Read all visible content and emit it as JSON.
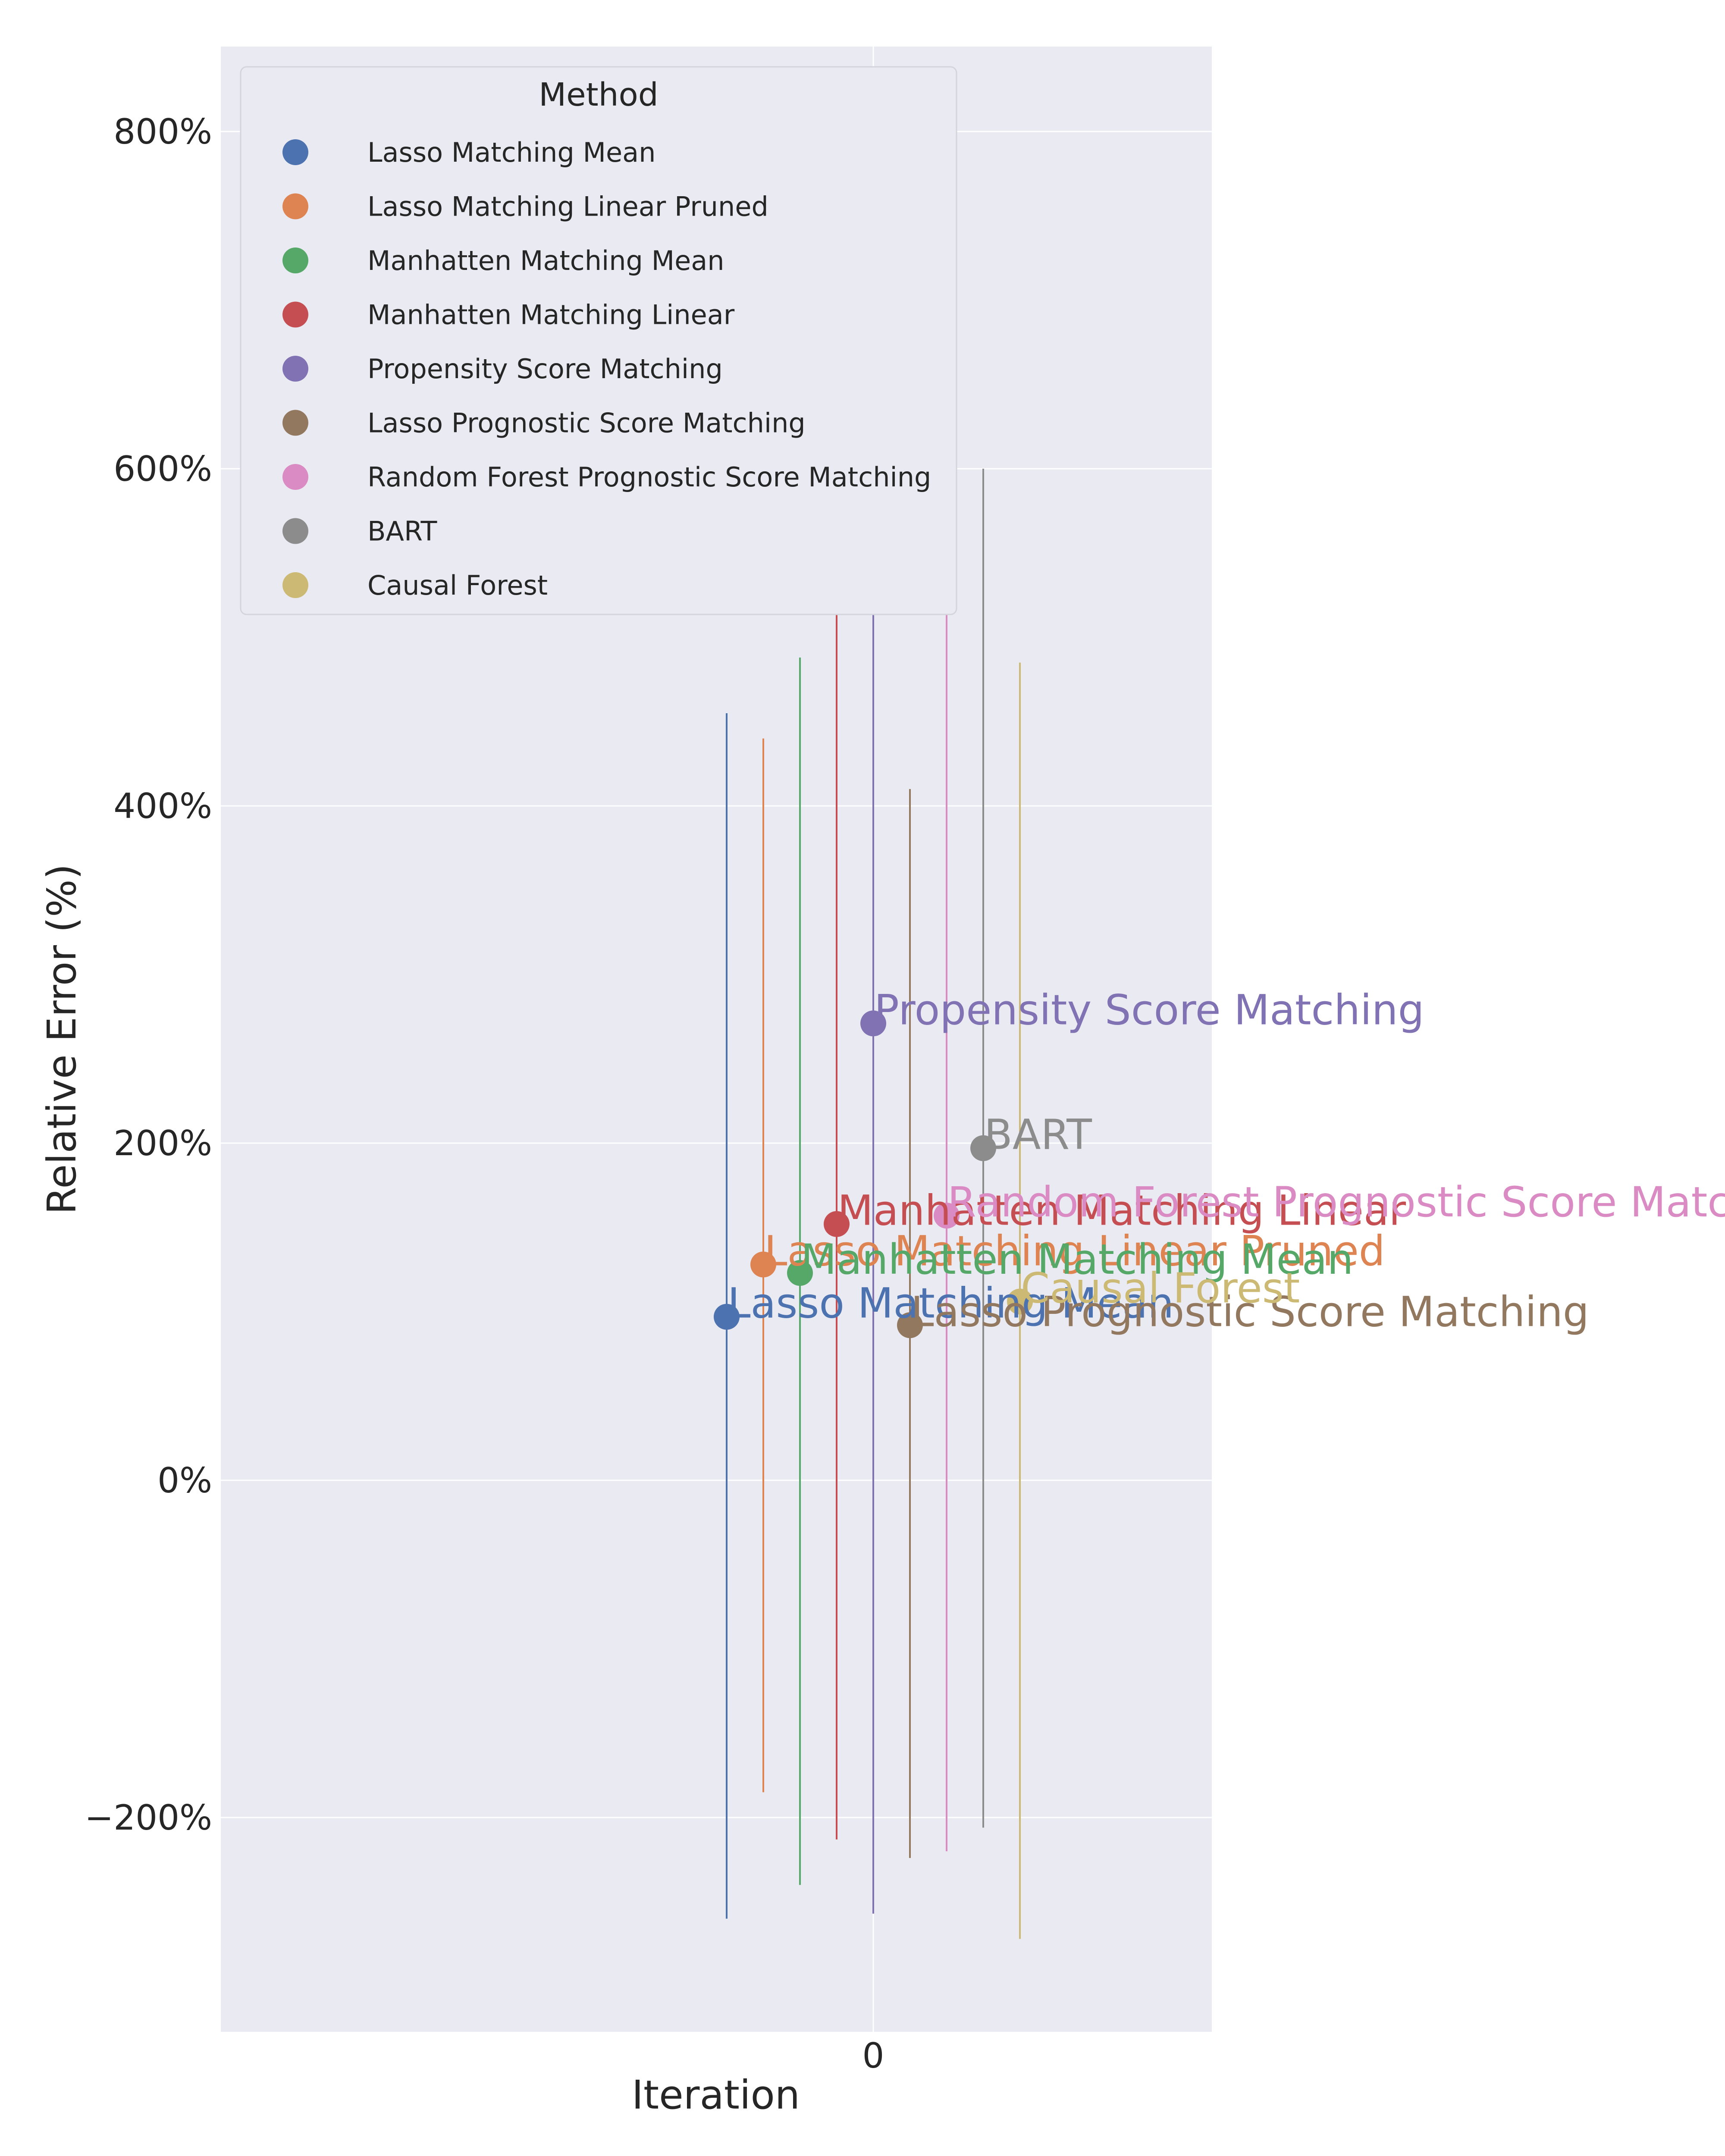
{
  "chart_data": {
    "type": "scatter",
    "title": "",
    "xlabel": "Iteration",
    "ylabel": "Relative Error (%)",
    "x_ticks": [
      "0"
    ],
    "y_ticks": [
      "−200%",
      "0%",
      "200%",
      "400%",
      "600%",
      "800%"
    ],
    "ylim": [
      -325,
      850
    ],
    "grid": true,
    "legend": {
      "title": "Method",
      "position": "top-left"
    },
    "series": [
      {
        "name": "Lasso Matching Mean",
        "label": "Lasso Matching Mean",
        "color": "#4C72B0",
        "x": 0,
        "y": 97,
        "err_low": -260,
        "err_high": 455
      },
      {
        "name": "Lasso Matching Linear Pruned",
        "label": "Lasso Matching Linear Pruned",
        "color": "#DD8452",
        "x": 0,
        "y": 128,
        "err_low": -185,
        "err_high": 440
      },
      {
        "name": "Manhatten Matching Mean",
        "label": "Manhatten Matching Mean",
        "color": "#55A868",
        "x": 0,
        "y": 123,
        "err_low": -240,
        "err_high": 488
      },
      {
        "name": "Manhatten Matching Linear",
        "label": "Manhatten Matching Linear",
        "color": "#C44E52",
        "x": 0,
        "y": 152,
        "err_low": -213,
        "err_high": 515
      },
      {
        "name": "Propensity Score Matching",
        "label": "Propensity Score Matching",
        "color": "#8172B3",
        "x": 0,
        "y": 271,
        "err_low": -257,
        "err_high": 800
      },
      {
        "name": "Lasso Prognostic Score Matching",
        "label": "Lasso Prognostic Score Matching",
        "color": "#937860",
        "x": 0,
        "y": 92,
        "err_low": -224,
        "err_high": 410
      },
      {
        "name": "Random Forest Prognostic Score Matching",
        "label": "Random Forest Prognostic Score Matchi",
        "color": "#DA8BC3",
        "x": 0,
        "y": 157,
        "err_low": -220,
        "err_high": 535
      },
      {
        "name": "BART",
        "label": "BART",
        "color": "#8C8C8C",
        "x": 0,
        "y": 197,
        "err_low": -206,
        "err_high": 600
      },
      {
        "name": "Causal Forest",
        "label": "Causal Forest",
        "color": "#CCB974",
        "x": 0,
        "y": 106,
        "err_low": -272,
        "err_high": 485
      }
    ]
  }
}
